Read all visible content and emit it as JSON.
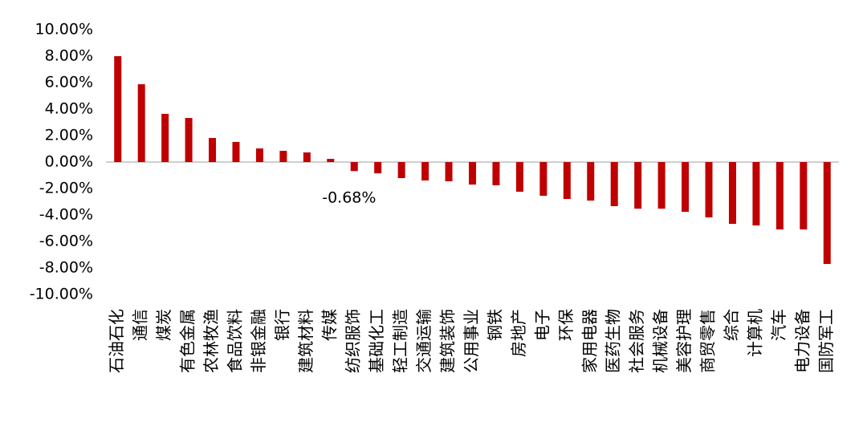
{
  "chart_data": {
    "type": "bar",
    "categories": [
      "石油石化",
      "通信",
      "煤炭",
      "有色金属",
      "农林牧渔",
      "食品饮料",
      "非银金融",
      "银行",
      "建筑材料",
      "传媒",
      "纺织服饰",
      "基础化工",
      "轻工制造",
      "交通运输",
      "建筑装饰",
      "公用事业",
      "钢铁",
      "房地产",
      "电子",
      "环保",
      "家用电器",
      "医药生物",
      "社会服务",
      "机械设备",
      "美容护理",
      "商贸零售",
      "综合",
      "计算机",
      "汽车",
      "电力设备",
      "国防军工"
    ],
    "values": [
      8.0,
      5.88,
      3.64,
      3.33,
      1.82,
      1.52,
      1.03,
      0.85,
      0.73,
      0.24,
      -0.68,
      -0.85,
      -1.21,
      -1.39,
      -1.45,
      -1.7,
      -1.75,
      -2.24,
      -2.55,
      -2.79,
      -2.91,
      -3.33,
      -3.52,
      -3.52,
      -3.76,
      -4.18,
      -4.67,
      -4.79,
      -5.09,
      -5.09,
      -7.7
    ],
    "value_labels": [
      null,
      null,
      null,
      null,
      null,
      null,
      null,
      null,
      null,
      null,
      "-0.68%",
      null,
      null,
      null,
      null,
      null,
      null,
      null,
      null,
      null,
      null,
      null,
      null,
      null,
      null,
      null,
      null,
      null,
      null,
      null,
      null
    ],
    "color": "#c00000",
    "ylim": [
      -10,
      10
    ],
    "yticks": [
      {
        "value": -10,
        "label": "-10.00%"
      },
      {
        "value": -8,
        "label": "-8.00%"
      },
      {
        "value": -6,
        "label": "-6.00%"
      },
      {
        "value": -4,
        "label": "-4.00%"
      },
      {
        "value": -2,
        "label": "-2.00%"
      },
      {
        "value": 0,
        "label": "0.00%"
      },
      {
        "value": 2,
        "label": "2.00%"
      },
      {
        "value": 4,
        "label": "4.00%"
      },
      {
        "value": 6,
        "label": "6.00%"
      },
      {
        "value": 8,
        "label": "8.00%"
      },
      {
        "value": 10,
        "label": "10.00%"
      }
    ]
  }
}
